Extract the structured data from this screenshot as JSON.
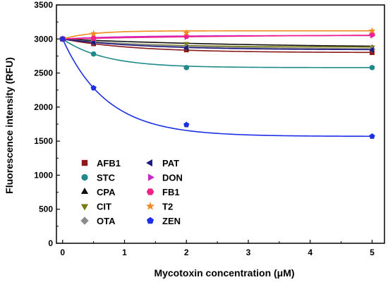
{
  "chart_data": {
    "type": "scatter",
    "xlabel": "Mycotoxin concentration (μM)",
    "ylabel": "Fluorescence intensity (RFU)",
    "xlim": [
      -0.1,
      5.2
    ],
    "ylim": [
      0,
      3500
    ],
    "xticks": [
      0,
      1,
      2,
      3,
      4,
      5
    ],
    "yticks": [
      0,
      500,
      1000,
      1500,
      2000,
      2500,
      3000,
      3500
    ],
    "xtick_labels": [
      "0",
      "1",
      "2",
      "3",
      "4",
      "5"
    ],
    "ytick_labels": [
      "0",
      "500",
      "1000",
      "1500",
      "2000",
      "2500",
      "3000",
      "3500"
    ],
    "x": [
      0,
      0.5,
      2,
      5
    ],
    "fit_curves": "exponential decay fits through each series",
    "legend_position": "bottom-left",
    "grid": false,
    "series": [
      {
        "name": "AFB1",
        "color": "#8b1a1a",
        "marker": "square",
        "values": [
          3000,
          2930,
          2840,
          2800
        ]
      },
      {
        "name": "STC",
        "color": "#1f8a8a",
        "marker": "circle",
        "values": [
          3000,
          2780,
          2580,
          2580
        ]
      },
      {
        "name": "CPA",
        "color": "#111111",
        "marker": "triangle-up",
        "values": [
          3000,
          2980,
          2900,
          2870
        ]
      },
      {
        "name": "CIT",
        "color": "#7a7a10",
        "marker": "triangle-down",
        "values": [
          3000,
          2960,
          2930,
          2880
        ]
      },
      {
        "name": "OTA",
        "color": "#8c8c8c",
        "marker": "diamond",
        "values": [
          3000,
          2960,
          2880,
          2850
        ]
      },
      {
        "name": "PAT",
        "color": "#1a1a80",
        "marker": "triangle-left",
        "values": [
          3000,
          2950,
          2870,
          2840
        ]
      },
      {
        "name": "DON",
        "color": "#cc22cc",
        "marker": "triangle-right",
        "values": [
          3000,
          3020,
          3030,
          3050
        ]
      },
      {
        "name": "FB1",
        "color": "#ee2288",
        "marker": "hexagon",
        "values": [
          3000,
          3010,
          3040,
          3070
        ]
      },
      {
        "name": "T2",
        "color": "#f08a1e",
        "marker": "star",
        "values": [
          3000,
          3080,
          3090,
          3120
        ]
      },
      {
        "name": "ZEN",
        "color": "#1c2ee6",
        "marker": "pentagon",
        "values": [
          3000,
          2280,
          1740,
          1570
        ]
      }
    ]
  }
}
